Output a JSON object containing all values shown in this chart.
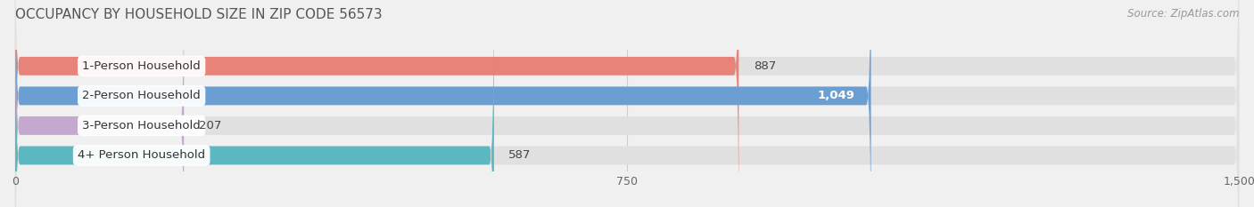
{
  "title": "OCCUPANCY BY HOUSEHOLD SIZE IN ZIP CODE 56573",
  "source": "Source: ZipAtlas.com",
  "categories": [
    "1-Person Household",
    "2-Person Household",
    "3-Person Household",
    "4+ Person Household"
  ],
  "values": [
    887,
    1049,
    207,
    587
  ],
  "bar_colors": [
    "#E8837A",
    "#6B9FD4",
    "#C4A8D0",
    "#5BB8C0"
  ],
  "xlim": [
    0,
    1500
  ],
  "xticks": [
    0,
    750,
    1500
  ],
  "bar_height": 0.62,
  "background_color": "#f0f0f0",
  "bar_bg_color": "#e0e0e0",
  "title_fontsize": 11,
  "source_fontsize": 8.5,
  "tick_fontsize": 9,
  "cat_fontsize": 9.5,
  "val_fontsize": 9.5
}
